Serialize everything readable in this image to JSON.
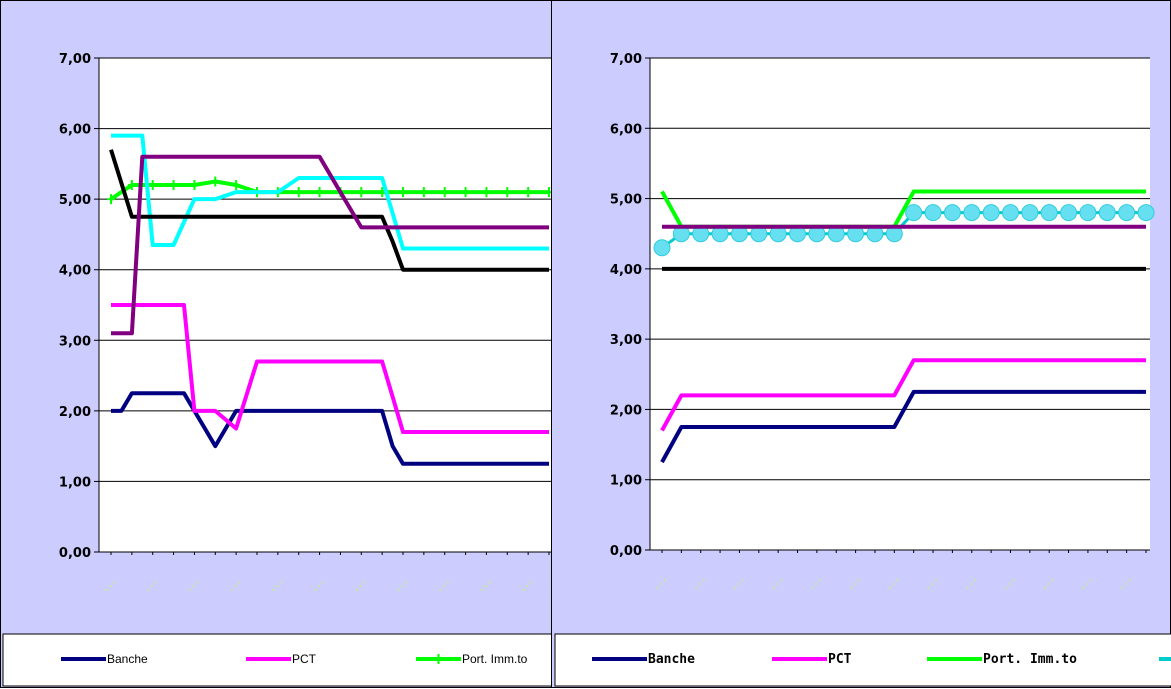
{
  "chart_data": [
    {
      "type": "line",
      "ylim": [
        0,
        7
      ],
      "yticks": [
        "0,00",
        "1,00",
        "2,00",
        "3,00",
        "4,00",
        "5,00",
        "6,00",
        "7,00"
      ],
      "grid": true,
      "x_tick_labels_illegible": true,
      "legend_position": "bottom",
      "series": [
        {
          "name": "Banche",
          "color": "#000080",
          "x": [
            0,
            0.5,
            1,
            2,
            3,
            3.5,
            4,
            4.5,
            5,
            6,
            7,
            8,
            9,
            10,
            11,
            12,
            13,
            13.5,
            14,
            15,
            16,
            17,
            18,
            19,
            20,
            21
          ],
          "y": [
            2.0,
            2.0,
            2.25,
            2.25,
            2.25,
            2.25,
            2.0,
            1.75,
            1.5,
            2.0,
            2.0,
            2.0,
            2.0,
            2.0,
            2.0,
            2.0,
            2.0,
            1.5,
            1.25,
            1.25,
            1.25,
            1.25,
            1.25,
            1.25,
            1.25,
            1.25
          ]
        },
        {
          "name": "PCT",
          "color": "#ff00ff",
          "x": [
            0,
            1,
            2,
            3,
            3.5,
            4,
            5,
            6,
            7,
            8,
            9,
            10,
            11,
            12,
            13,
            13.5,
            14,
            15,
            16,
            17,
            18,
            19,
            20,
            21
          ],
          "y": [
            3.5,
            3.5,
            3.5,
            3.5,
            3.5,
            2.0,
            2.0,
            1.75,
            2.7,
            2.7,
            2.7,
            2.7,
            2.7,
            2.7,
            2.7,
            2.2,
            1.7,
            1.7,
            1.7,
            1.7,
            1.7,
            1.7,
            1.7,
            1.7
          ]
        },
        {
          "name": "Port. Imm.to",
          "color": "#00ff00",
          "marker": "plus",
          "x": [
            0,
            1,
            2,
            3,
            4,
            5,
            6,
            7,
            8,
            9,
            10,
            11,
            12,
            13,
            14,
            15,
            16,
            17,
            18,
            19,
            20,
            21
          ],
          "y": [
            5.0,
            5.2,
            5.2,
            5.2,
            5.2,
            5.25,
            5.2,
            5.1,
            5.1,
            5.1,
            5.1,
            5.1,
            5.1,
            5.1,
            5.1,
            5.1,
            5.1,
            5.1,
            5.1,
            5.1,
            5.1,
            5.1
          ]
        },
        {
          "color": "#00ffff",
          "x": [
            0,
            1,
            1.5,
            2,
            3,
            4,
            5,
            6,
            7,
            8,
            9,
            10,
            11,
            12,
            13,
            13.5,
            14,
            15,
            16,
            17,
            18,
            19,
            20,
            21
          ],
          "y": [
            5.9,
            5.9,
            5.9,
            4.35,
            4.35,
            5.0,
            5.0,
            5.1,
            5.1,
            5.1,
            5.3,
            5.3,
            5.3,
            5.3,
            5.3,
            4.8,
            4.3,
            4.3,
            4.3,
            4.3,
            4.3,
            4.3,
            4.3,
            4.3
          ]
        },
        {
          "color": "#000000",
          "x": [
            0,
            1,
            2,
            3,
            4,
            5,
            6,
            7,
            8,
            9,
            10,
            11,
            12,
            13,
            13.5,
            14,
            15,
            16,
            17,
            18,
            19,
            20,
            21
          ],
          "y": [
            5.7,
            4.75,
            4.75,
            4.75,
            4.75,
            4.75,
            4.75,
            4.75,
            4.75,
            4.75,
            4.75,
            4.75,
            4.75,
            4.75,
            4.4,
            4.0,
            4.0,
            4.0,
            4.0,
            4.0,
            4.0,
            4.0,
            4.0
          ]
        },
        {
          "color": "#800080",
          "x": [
            0,
            1,
            1.5,
            2,
            3,
            4,
            5,
            6,
            7,
            8,
            9,
            10,
            11,
            12,
            13,
            14,
            15,
            16,
            17,
            18,
            19,
            20,
            21
          ],
          "y": [
            3.1,
            3.1,
            5.6,
            5.6,
            5.6,
            5.6,
            5.6,
            5.6,
            5.6,
            5.6,
            5.6,
            5.6,
            5.1,
            4.6,
            4.6,
            4.6,
            4.6,
            4.6,
            4.6,
            4.6,
            4.6,
            4.6,
            4.6
          ]
        }
      ]
    },
    {
      "type": "line",
      "ylim": [
        0,
        7
      ],
      "yticks": [
        "0,00",
        "1,00",
        "2,00",
        "3,00",
        "4,00",
        "5,00",
        "6,00",
        "7,00"
      ],
      "grid": true,
      "x_tick_labels_illegible": true,
      "legend_position": "bottom",
      "series": [
        {
          "name": "Banche",
          "color": "#000080",
          "x": [
            0,
            1,
            2,
            3,
            4,
            5,
            6,
            7,
            8,
            9,
            10,
            11,
            12,
            13,
            14,
            15,
            16,
            17,
            18,
            19,
            20,
            21,
            22,
            23,
            24,
            25
          ],
          "y": [
            1.25,
            1.75,
            1.75,
            1.75,
            1.75,
            1.75,
            1.75,
            1.75,
            1.75,
            1.75,
            1.75,
            1.75,
            1.75,
            2.25,
            2.25,
            2.25,
            2.25,
            2.25,
            2.25,
            2.25,
            2.25,
            2.25,
            2.25,
            2.25,
            2.25,
            2.25
          ]
        },
        {
          "name": "PCT",
          "color": "#ff00ff",
          "x": [
            0,
            1,
            2,
            3,
            4,
            5,
            6,
            7,
            8,
            9,
            10,
            11,
            12,
            13,
            14,
            15,
            16,
            17,
            18,
            19,
            20,
            21,
            22,
            23,
            24,
            25
          ],
          "y": [
            1.7,
            2.2,
            2.2,
            2.2,
            2.2,
            2.2,
            2.2,
            2.2,
            2.2,
            2.2,
            2.2,
            2.2,
            2.2,
            2.7,
            2.7,
            2.7,
            2.7,
            2.7,
            2.7,
            2.7,
            2.7,
            2.7,
            2.7,
            2.7,
            2.7,
            2.7
          ]
        },
        {
          "name": "Port. Imm.to",
          "color": "#00ff00",
          "x": [
            0,
            1,
            2,
            3,
            4,
            5,
            6,
            7,
            8,
            9,
            10,
            11,
            12,
            13,
            14,
            15,
            16,
            17,
            18,
            19,
            20,
            21,
            22,
            23,
            24,
            25
          ],
          "y": [
            5.1,
            4.6,
            4.6,
            4.6,
            4.6,
            4.6,
            4.6,
            4.6,
            4.6,
            4.6,
            4.6,
            4.6,
            4.6,
            5.1,
            5.1,
            5.1,
            5.1,
            5.1,
            5.1,
            5.1,
            5.1,
            5.1,
            5.1,
            5.1,
            5.1,
            5.1
          ]
        },
        {
          "color": "#00cccc",
          "marker": "circle",
          "x": [
            0,
            1,
            2,
            3,
            4,
            5,
            6,
            7,
            8,
            9,
            10,
            11,
            12,
            13,
            14,
            15,
            16,
            17,
            18,
            19,
            20,
            21,
            22,
            23,
            24,
            25
          ],
          "y": [
            4.3,
            4.5,
            4.5,
            4.5,
            4.5,
            4.5,
            4.5,
            4.5,
            4.5,
            4.5,
            4.5,
            4.5,
            4.5,
            4.8,
            4.8,
            4.8,
            4.8,
            4.8,
            4.8,
            4.8,
            4.8,
            4.8,
            4.8,
            4.8,
            4.8,
            4.8
          ]
        },
        {
          "color": "#000000",
          "x": [
            0,
            25
          ],
          "y": [
            4.0,
            4.0
          ]
        },
        {
          "color": "#800080",
          "x": [
            0,
            25
          ],
          "y": [
            4.6,
            4.6
          ]
        }
      ]
    }
  ],
  "legends": [
    {
      "items": [
        {
          "label": "Banche",
          "color": "#000080",
          "marker": ""
        },
        {
          "label": "PCT",
          "color": "#ff00ff",
          "marker": ""
        },
        {
          "label": "Port. Imm.to",
          "color": "#00ff00",
          "marker": "plus"
        }
      ]
    },
    {
      "items": [
        {
          "label": "Banche",
          "color": "#000080",
          "marker": ""
        },
        {
          "label": "PCT",
          "color": "#ff00ff",
          "marker": ""
        },
        {
          "label": "Port. Imm.to",
          "color": "#00ff00",
          "marker": ""
        },
        {
          "label": "",
          "color": "#00cccc",
          "marker": ""
        }
      ]
    }
  ]
}
